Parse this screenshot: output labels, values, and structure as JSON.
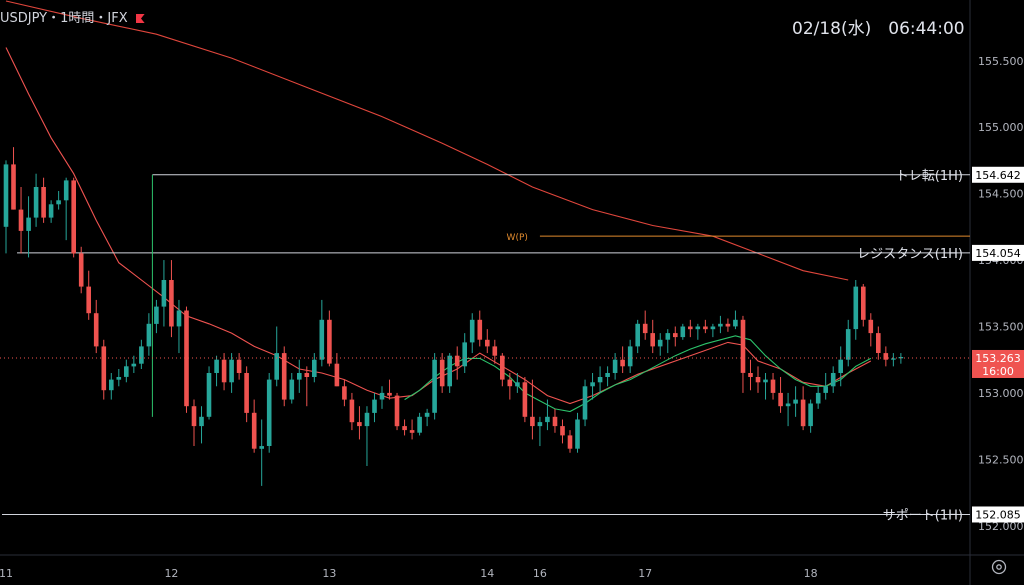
{
  "header": {
    "symbol_label": "USDJPY・1時間・JFX",
    "datetime": "02/18(水)　06:44:00",
    "flag_icon": "flag-icon"
  },
  "settings_icon": "gear-icon",
  "colors": {
    "background": "#000000",
    "up": "#26a69a",
    "down": "#ef5350",
    "ma_long": "#e0463c",
    "ma_short": "#ef5350",
    "ma_green": "#2cc36b",
    "level_line": "#d1d4dc",
    "pivot": "#e08a2e",
    "axis_text": "#b2b5be"
  },
  "chart_data": {
    "type": "candlestick",
    "symbol": "USDJPY",
    "timeframe": "1H",
    "broker": "JFX",
    "y_range": [
      151.78,
      155.95
    ],
    "y_ticks": [
      "155.500",
      "155.000",
      "154.500",
      "154.000",
      "153.500",
      "153.000",
      "152.500",
      "152.000"
    ],
    "x_ticks": [
      {
        "label": "11",
        "index": 0
      },
      {
        "label": "12",
        "index": 22
      },
      {
        "label": "13",
        "index": 43
      },
      {
        "label": "14",
        "index": 64
      },
      {
        "label": "16",
        "index": 71
      },
      {
        "label": "17",
        "index": 85
      },
      {
        "label": "18",
        "index": 107
      }
    ],
    "current_price": {
      "price": 153.263,
      "price_label": "153.263",
      "countdown": "16:00"
    },
    "levels": [
      {
        "name": "trend-reversal",
        "label": "トレ転(1H)",
        "price": 154.642,
        "price_label": "154.642",
        "start_index": 20
      },
      {
        "name": "resistance",
        "label": "レジスタンス(1H)",
        "price": 154.054,
        "price_label": "154.054",
        "start_index": 2
      },
      {
        "name": "support",
        "label": "サポート(1H)",
        "price": 152.085,
        "price_label": "152.085",
        "start_index": 0
      }
    ],
    "pivot": {
      "label": "W(P)",
      "price": 154.18,
      "start_index": 71
    },
    "candles": [
      [
        154.25,
        154.75,
        154.05,
        154.72
      ],
      [
        154.72,
        154.85,
        154.38,
        154.38
      ],
      [
        154.38,
        154.55,
        154.05,
        154.22
      ],
      [
        154.22,
        154.48,
        154.02,
        154.32
      ],
      [
        154.32,
        154.65,
        154.25,
        154.55
      ],
      [
        154.55,
        154.62,
        154.28,
        154.32
      ],
      [
        154.32,
        154.45,
        154.28,
        154.42
      ],
      [
        154.42,
        154.52,
        154.38,
        154.45
      ],
      [
        154.45,
        154.62,
        154.15,
        154.6
      ],
      [
        154.6,
        154.62,
        154.02,
        154.05
      ],
      [
        154.05,
        154.1,
        153.75,
        153.8
      ],
      [
        153.8,
        153.92,
        153.55,
        153.6
      ],
      [
        153.6,
        153.7,
        153.3,
        153.35
      ],
      [
        153.35,
        153.4,
        152.95,
        153.02
      ],
      [
        153.02,
        153.15,
        152.95,
        153.1
      ],
      [
        153.1,
        153.18,
        153.05,
        153.12
      ],
      [
        153.12,
        153.25,
        153.08,
        153.2
      ],
      [
        153.2,
        153.28,
        153.15,
        153.22
      ],
      [
        153.22,
        153.4,
        153.18,
        153.35
      ],
      [
        153.35,
        153.6,
        153.28,
        153.52
      ],
      [
        153.52,
        153.7,
        153.45,
        153.65
      ],
      [
        153.65,
        154.0,
        153.5,
        153.85
      ],
      [
        153.85,
        154.0,
        153.42,
        153.5
      ],
      [
        153.5,
        153.7,
        153.3,
        153.62
      ],
      [
        153.62,
        153.65,
        152.85,
        152.9
      ],
      [
        152.9,
        152.95,
        152.6,
        152.75
      ],
      [
        152.75,
        152.9,
        152.62,
        152.82
      ],
      [
        152.82,
        153.2,
        152.8,
        153.15
      ],
      [
        153.15,
        153.28,
        153.05,
        153.25
      ],
      [
        153.25,
        153.3,
        153.02,
        153.08
      ],
      [
        153.08,
        153.3,
        153.0,
        153.25
      ],
      [
        153.25,
        153.3,
        153.1,
        153.15
      ],
      [
        153.15,
        153.2,
        152.78,
        152.85
      ],
      [
        152.85,
        152.95,
        152.55,
        152.58
      ],
      [
        152.58,
        152.8,
        152.3,
        152.6
      ],
      [
        152.6,
        153.15,
        152.55,
        153.1
      ],
      [
        153.1,
        153.5,
        153.05,
        153.3
      ],
      [
        153.3,
        153.35,
        152.9,
        152.95
      ],
      [
        152.95,
        153.15,
        152.92,
        153.1
      ],
      [
        153.1,
        153.25,
        153.0,
        153.15
      ],
      [
        153.15,
        153.2,
        152.9,
        153.12
      ],
      [
        153.12,
        153.3,
        153.08,
        153.25
      ],
      [
        153.25,
        153.7,
        153.2,
        153.55
      ],
      [
        153.55,
        153.62,
        153.2,
        153.22
      ],
      [
        153.22,
        153.3,
        153.05,
        153.05
      ],
      [
        153.05,
        153.1,
        152.9,
        152.95
      ],
      [
        152.95,
        153.0,
        152.72,
        152.78
      ],
      [
        152.78,
        152.9,
        152.65,
        152.75
      ],
      [
        152.75,
        152.9,
        152.45,
        152.85
      ],
      [
        152.85,
        153.0,
        152.78,
        152.95
      ],
      [
        152.95,
        153.05,
        152.88,
        153.0
      ],
      [
        153.0,
        153.1,
        152.95,
        152.98
      ],
      [
        152.98,
        153.0,
        152.72,
        152.75
      ],
      [
        152.75,
        152.8,
        152.68,
        152.72
      ],
      [
        152.72,
        152.8,
        152.65,
        152.7
      ],
      [
        152.7,
        152.85,
        152.68,
        152.82
      ],
      [
        152.82,
        152.88,
        152.75,
        152.85
      ],
      [
        152.85,
        153.3,
        152.8,
        153.25
      ],
      [
        153.25,
        153.3,
        153.0,
        153.05
      ],
      [
        153.05,
        153.3,
        153.0,
        153.28
      ],
      [
        153.28,
        153.35,
        153.1,
        153.2
      ],
      [
        153.2,
        153.45,
        153.15,
        153.38
      ],
      [
        153.38,
        153.6,
        153.3,
        153.55
      ],
      [
        153.55,
        153.62,
        153.35,
        153.4
      ],
      [
        153.4,
        153.48,
        153.3,
        153.35
      ],
      [
        153.35,
        153.4,
        153.22,
        153.28
      ],
      [
        153.28,
        153.3,
        153.05,
        153.1
      ],
      [
        153.1,
        153.15,
        152.95,
        153.05
      ],
      [
        153.05,
        153.15,
        153.0,
        153.08
      ],
      [
        153.08,
        153.12,
        152.78,
        152.82
      ],
      [
        152.82,
        153.1,
        152.65,
        152.75
      ],
      [
        152.75,
        152.82,
        152.6,
        152.78
      ],
      [
        152.78,
        152.95,
        152.72,
        152.82
      ],
      [
        152.82,
        152.88,
        152.7,
        152.75
      ],
      [
        152.75,
        152.8,
        152.62,
        152.68
      ],
      [
        152.68,
        152.72,
        152.55,
        152.58
      ],
      [
        152.58,
        152.85,
        152.55,
        152.8
      ],
      [
        152.8,
        153.1,
        152.75,
        153.05
      ],
      [
        153.05,
        153.15,
        152.95,
        153.08
      ],
      [
        153.08,
        153.2,
        153.0,
        153.12
      ],
      [
        153.12,
        153.2,
        153.05,
        153.15
      ],
      [
        153.15,
        153.3,
        153.1,
        153.25
      ],
      [
        153.25,
        153.35,
        153.15,
        153.2
      ],
      [
        153.2,
        153.4,
        153.15,
        153.35
      ],
      [
        153.35,
        153.55,
        153.3,
        153.52
      ],
      [
        153.52,
        153.62,
        153.4,
        153.45
      ],
      [
        153.45,
        153.55,
        153.3,
        153.35
      ],
      [
        153.35,
        153.45,
        153.28,
        153.4
      ],
      [
        153.4,
        153.48,
        153.3,
        153.45
      ],
      [
        153.45,
        153.5,
        153.35,
        153.42
      ],
      [
        153.42,
        153.52,
        153.4,
        153.5
      ],
      [
        153.5,
        153.55,
        153.42,
        153.48
      ],
      [
        153.48,
        153.52,
        153.4,
        153.5
      ],
      [
        153.5,
        153.55,
        153.45,
        153.48
      ],
      [
        153.48,
        153.52,
        153.42,
        153.5
      ],
      [
        153.5,
        153.58,
        153.45,
        153.52
      ],
      [
        153.52,
        153.56,
        153.46,
        153.5
      ],
      [
        153.5,
        153.62,
        153.48,
        153.55
      ],
      [
        153.55,
        153.58,
        153.0,
        153.15
      ],
      [
        153.15,
        153.25,
        153.02,
        153.12
      ],
      [
        153.12,
        153.2,
        153.0,
        153.08
      ],
      [
        153.08,
        153.15,
        152.95,
        153.1
      ],
      [
        153.1,
        153.15,
        152.95,
        153.0
      ],
      [
        153.0,
        153.12,
        152.85,
        152.9
      ],
      [
        152.9,
        153.0,
        152.75,
        152.92
      ],
      [
        152.92,
        153.05,
        152.82,
        152.95
      ],
      [
        152.95,
        153.05,
        152.72,
        152.75
      ],
      [
        152.75,
        152.95,
        152.7,
        152.92
      ],
      [
        152.92,
        153.05,
        152.88,
        153.0
      ],
      [
        153.0,
        153.15,
        152.95,
        153.05
      ],
      [
        153.05,
        153.2,
        153.0,
        153.15
      ],
      [
        153.15,
        153.35,
        153.05,
        153.25
      ],
      [
        153.25,
        153.55,
        153.2,
        153.48
      ],
      [
        153.48,
        153.85,
        153.4,
        153.8
      ],
      [
        153.8,
        153.82,
        153.5,
        153.55
      ],
      [
        153.55,
        153.6,
        153.35,
        153.45
      ],
      [
        153.45,
        153.5,
        153.25,
        153.3
      ],
      [
        153.3,
        153.35,
        153.2,
        153.25
      ],
      [
        153.25,
        153.3,
        153.2,
        153.26
      ],
      [
        153.26,
        153.3,
        153.22,
        153.27
      ]
    ],
    "ma_long": [
      [
        0,
        155.95
      ],
      [
        10,
        155.82
      ],
      [
        20,
        155.7
      ],
      [
        30,
        155.52
      ],
      [
        40,
        155.3
      ],
      [
        50,
        155.08
      ],
      [
        58,
        154.88
      ],
      [
        64,
        154.72
      ],
      [
        70,
        154.55
      ],
      [
        78,
        154.38
      ],
      [
        86,
        154.26
      ],
      [
        94,
        154.18
      ],
      [
        100,
        154.05
      ],
      [
        106,
        153.92
      ],
      [
        112,
        153.85
      ]
    ],
    "ma_short": [
      [
        0,
        155.6
      ],
      [
        3,
        155.25
      ],
      [
        6,
        154.92
      ],
      [
        9,
        154.65
      ],
      [
        12,
        154.3
      ],
      [
        15,
        153.98
      ],
      [
        18,
        153.85
      ],
      [
        21,
        153.72
      ],
      [
        24,
        153.58
      ],
      [
        27,
        153.52
      ],
      [
        30,
        153.45
      ],
      [
        33,
        153.35
      ],
      [
        36,
        153.28
      ],
      [
        39,
        153.18
      ],
      [
        42,
        153.15
      ],
      [
        45,
        153.1
      ],
      [
        48,
        153.02
      ],
      [
        51,
        152.96
      ],
      [
        54,
        152.98
      ],
      [
        57,
        153.1
      ],
      [
        60,
        153.18
      ],
      [
        63,
        153.3
      ],
      [
        66,
        153.2
      ],
      [
        69,
        153.1
      ],
      [
        72,
        152.98
      ],
      [
        75,
        152.92
      ],
      [
        78,
        152.98
      ],
      [
        81,
        153.06
      ],
      [
        84,
        153.14
      ],
      [
        87,
        153.2
      ],
      [
        90,
        153.26
      ],
      [
        93,
        153.32
      ],
      [
        96,
        153.38
      ],
      [
        98,
        153.36
      ],
      [
        100,
        153.24
      ],
      [
        103,
        153.18
      ],
      [
        106,
        153.08
      ],
      [
        109,
        153.05
      ],
      [
        112,
        153.15
      ],
      [
        115,
        153.24
      ]
    ],
    "ma_green": [
      [
        53,
        152.95
      ],
      [
        55,
        153.02
      ],
      [
        57,
        153.12
      ],
      [
        59,
        153.2
      ],
      [
        61,
        153.26
      ],
      [
        63,
        153.26
      ],
      [
        65,
        153.2
      ],
      [
        67,
        153.12
      ],
      [
        69,
        153.0
      ],
      [
        71,
        152.94
      ],
      [
        73,
        152.88
      ],
      [
        75,
        152.86
      ],
      [
        77,
        152.92
      ],
      [
        79,
        153.0
      ],
      [
        81,
        153.06
      ],
      [
        83,
        153.1
      ],
      [
        85,
        153.16
      ],
      [
        87,
        153.22
      ],
      [
        89,
        153.28
      ],
      [
        91,
        153.33
      ],
      [
        93,
        153.37
      ],
      [
        95,
        153.4
      ],
      [
        97,
        153.43
      ],
      [
        99,
        153.4
      ],
      [
        101,
        153.28
      ],
      [
        103,
        153.18
      ],
      [
        105,
        153.1
      ],
      [
        107,
        153.05
      ],
      [
        109,
        153.05
      ],
      [
        111,
        153.1
      ],
      [
        113,
        153.2
      ],
      [
        115,
        153.26
      ]
    ]
  }
}
